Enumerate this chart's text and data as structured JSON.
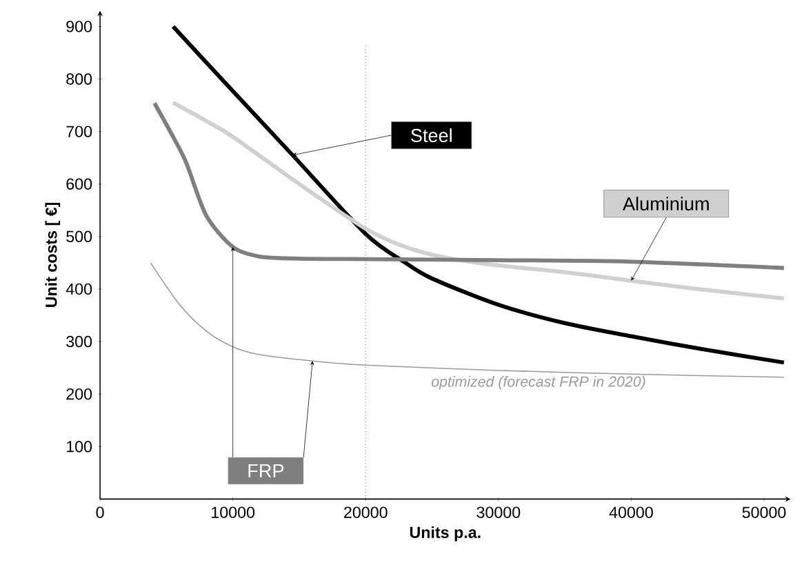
{
  "chart_data": {
    "type": "line",
    "xlabel": "Units p.a.",
    "ylabel": "Unit costs [ €]",
    "xlim": [
      0,
      52000
    ],
    "ylim": [
      0,
      930
    ],
    "xticks": [
      0,
      10000,
      20000,
      30000,
      40000,
      50000
    ],
    "yticks": [
      100,
      200,
      300,
      400,
      500,
      600,
      700,
      800,
      900
    ],
    "series": [
      {
        "name": "Steel",
        "color": "#000000",
        "x": [
          5500,
          10000,
          14500,
          20000,
          23000,
          25000,
          30000,
          35000,
          40000,
          45000,
          51500
        ],
        "values": [
          900,
          777,
          655,
          505,
          450,
          420,
          370,
          335,
          310,
          287,
          260
        ]
      },
      {
        "name": "Aluminium",
        "color": "#d0d0d0",
        "x": [
          5500,
          8000,
          10000,
          15000,
          20000,
          23000,
          26000,
          30000,
          35000,
          40000,
          45000,
          51500
        ],
        "values": [
          755,
          720,
          690,
          600,
          515,
          480,
          460,
          445,
          432,
          416,
          400,
          382
        ]
      },
      {
        "name": "FRP",
        "color": "#7f7f7f",
        "x": [
          4100,
          5500,
          6500,
          8000,
          10000,
          12000,
          15000,
          20000,
          30000,
          40000,
          51500
        ],
        "values": [
          754,
          690,
          640,
          540,
          480,
          462,
          458,
          457,
          455,
          452,
          440
        ]
      },
      {
        "name": "optimized (forecast FRP in 2020)",
        "color": "#999999",
        "x": [
          3800,
          6000,
          8000,
          10000,
          12000,
          16000,
          20000,
          30000,
          40000,
          51500
        ],
        "values": [
          450,
          370,
          320,
          290,
          275,
          263,
          255,
          245,
          238,
          232
        ]
      }
    ],
    "ref_lines": [
      {
        "axis": "x",
        "value": 20000,
        "color": "#000000",
        "line_style": "dotted"
      }
    ]
  }
}
